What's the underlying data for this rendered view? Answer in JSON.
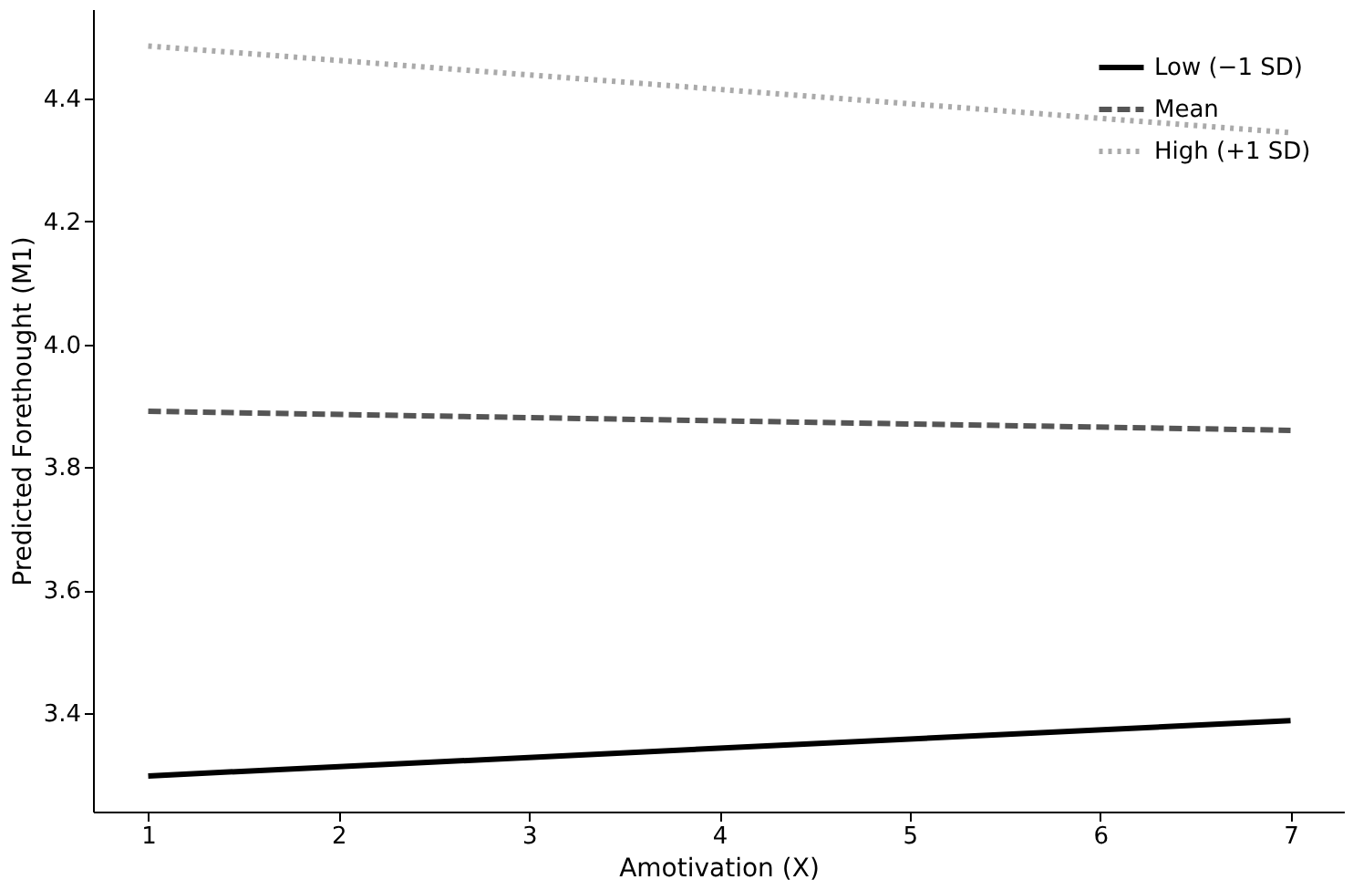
{
  "chart_data": {
    "type": "line",
    "xlabel": "Amotivation (X)",
    "ylabel": "Predicted Forethought (M1)",
    "x": [
      1,
      7
    ],
    "series": [
      {
        "name": "Low (−1 SD)",
        "color": "#000000",
        "line_style": "solid",
        "values": [
          3.298,
          3.388
        ]
      },
      {
        "name": "Mean",
        "color": "#555555",
        "line_style": "dashed",
        "values": [
          3.891,
          3.86
        ]
      },
      {
        "name": "High (+1 SD)",
        "color": "#aaaaaa",
        "line_style": "dotted",
        "values": [
          4.485,
          4.344
        ]
      }
    ],
    "xlim": [
      0.71,
      7.28
    ],
    "xticks": [
      1,
      2,
      3,
      4,
      5,
      6,
      7
    ],
    "ylim": [
      3.24,
      4.545
    ],
    "yticks": [
      3.4,
      3.6,
      3.8,
      {
        "value": 4.0,
        "label": "4.0"
      },
      4.2,
      4.4
    ],
    "grid": false,
    "legend": "top right",
    "marker": "none"
  }
}
